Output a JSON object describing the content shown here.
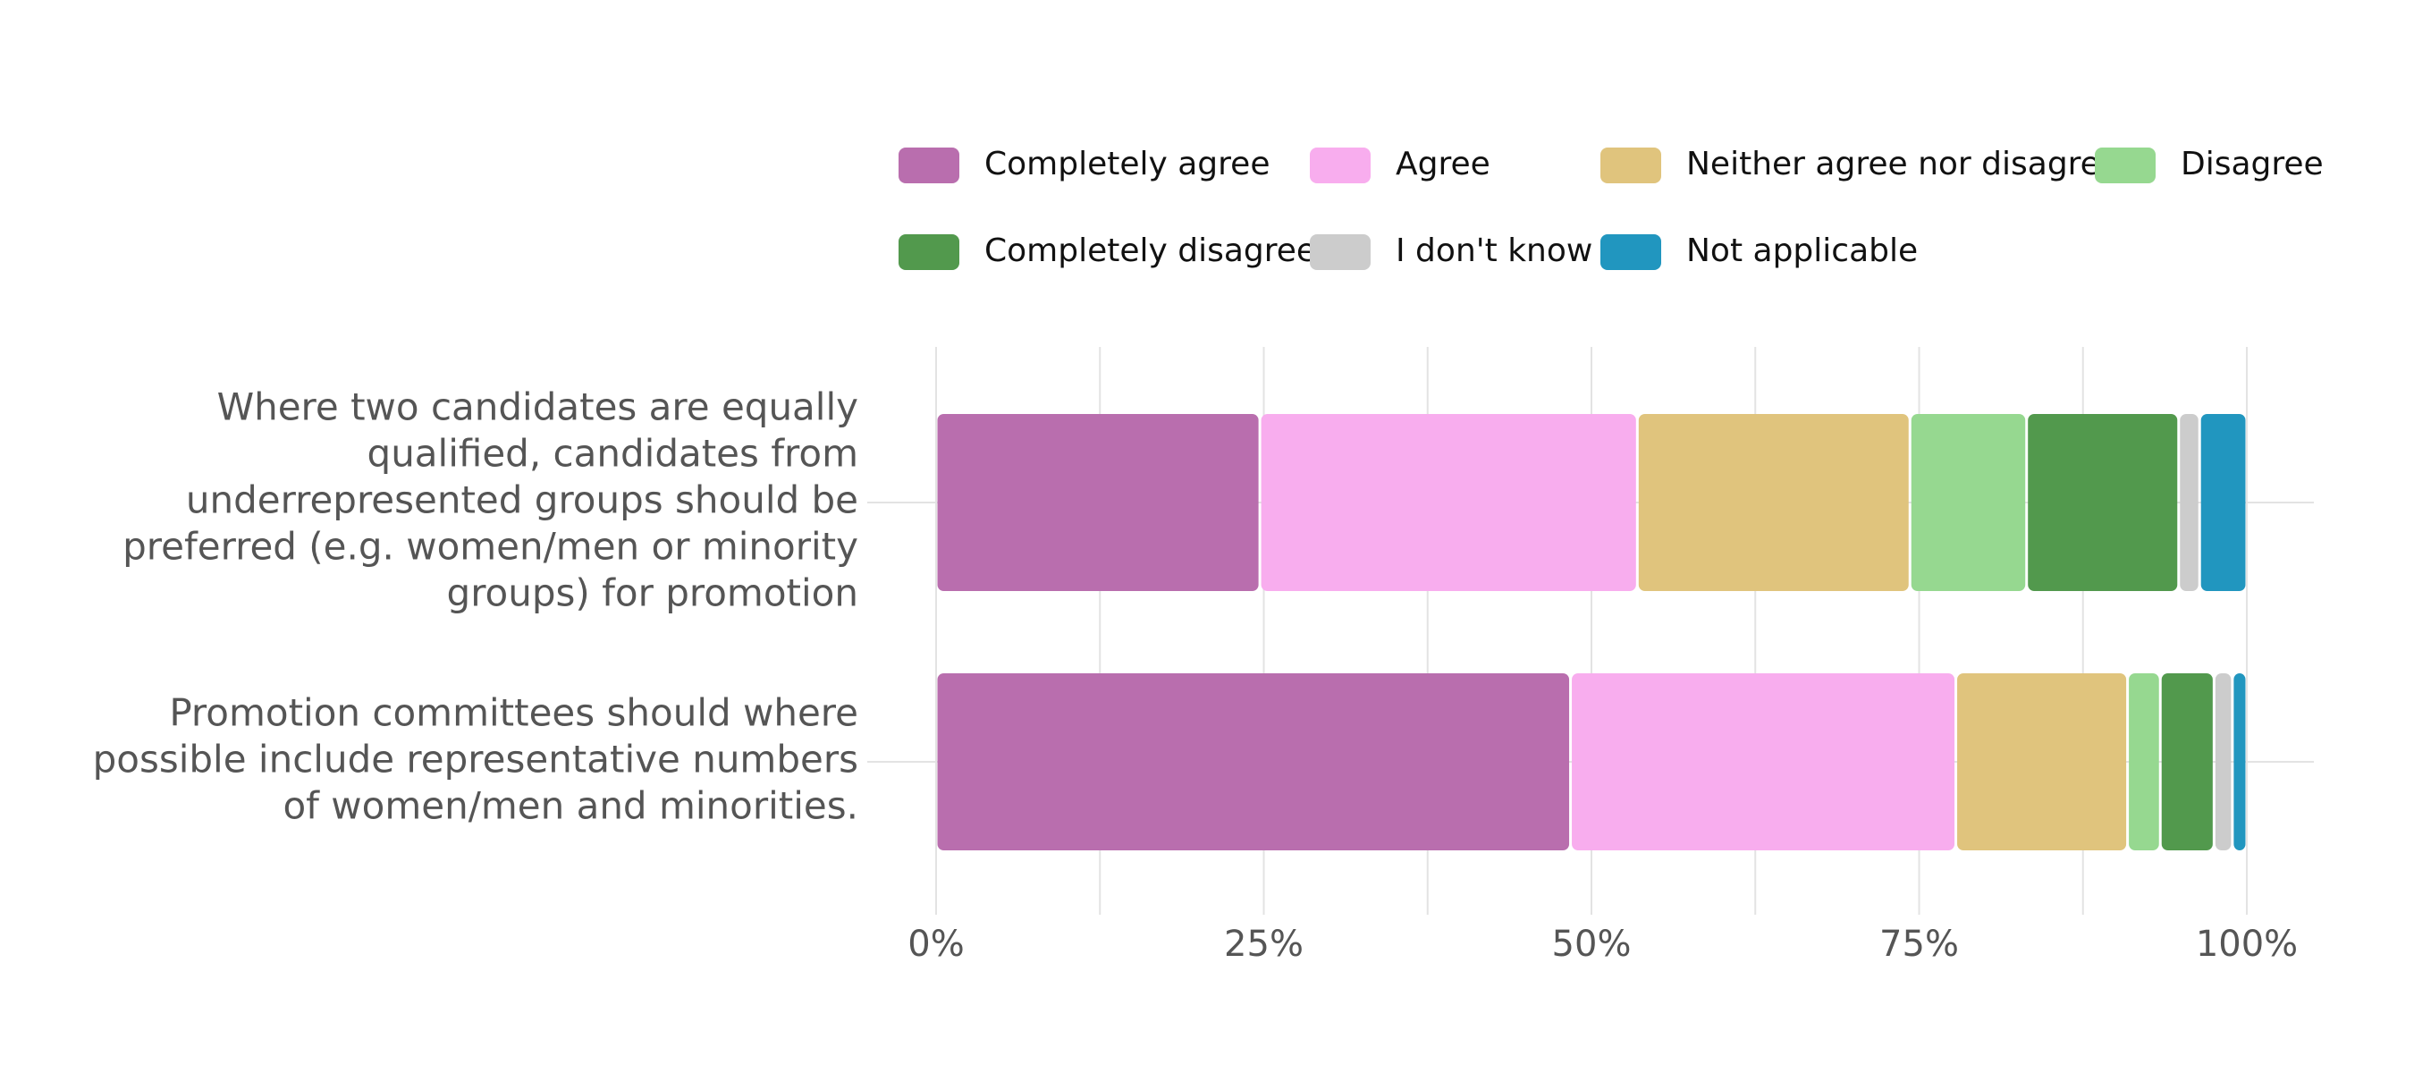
{
  "chart_data": {
    "type": "bar",
    "orientation": "horizontal",
    "stacked": true,
    "normalized": true,
    "title": "",
    "xlabel": "",
    "ylabel": "",
    "xlim": [
      0,
      100
    ],
    "x_ticks": [
      "0%",
      "25%",
      "50%",
      "75%",
      "100%"
    ],
    "grid": true,
    "legend_position": "top",
    "categories": [
      "Where two candidates are equally qualified, candidates from underrepresented groups should be preferred (e.g. women/men or minority groups) for promotion",
      "Promotion committees should where possible include representative numbers of women/men and minorities."
    ],
    "category_lines": [
      [
        "Where two candidates are equally",
        "qualified, candidates from",
        "underrepresented groups should be",
        "preferred (e.g. women/men or minority",
        "groups) for promotion"
      ],
      [
        "Promotion committees should where",
        "possible include representative numbers",
        "of women/men and minorities."
      ]
    ],
    "series": [
      {
        "name": "Completely agree",
        "color": "#B96EAE",
        "values": [
          24.7,
          48.4
        ]
      },
      {
        "name": "Agree",
        "color": "#F8ADEE",
        "values": [
          28.8,
          29.4
        ]
      },
      {
        "name": "Neither agree nor disagree",
        "color": "#E0C47D",
        "values": [
          20.8,
          13.1
        ]
      },
      {
        "name": "Disagree",
        "color": "#96D890",
        "values": [
          8.9,
          2.5
        ]
      },
      {
        "name": "Completely disagree",
        "color": "#52994D",
        "values": [
          11.6,
          4.1
        ]
      },
      {
        "name": "I don't know",
        "color": "#CCCCCC",
        "values": [
          1.6,
          1.4
        ]
      },
      {
        "name": "Not applicable",
        "color": "#2196BF",
        "values": [
          3.6,
          1.1
        ]
      }
    ]
  }
}
